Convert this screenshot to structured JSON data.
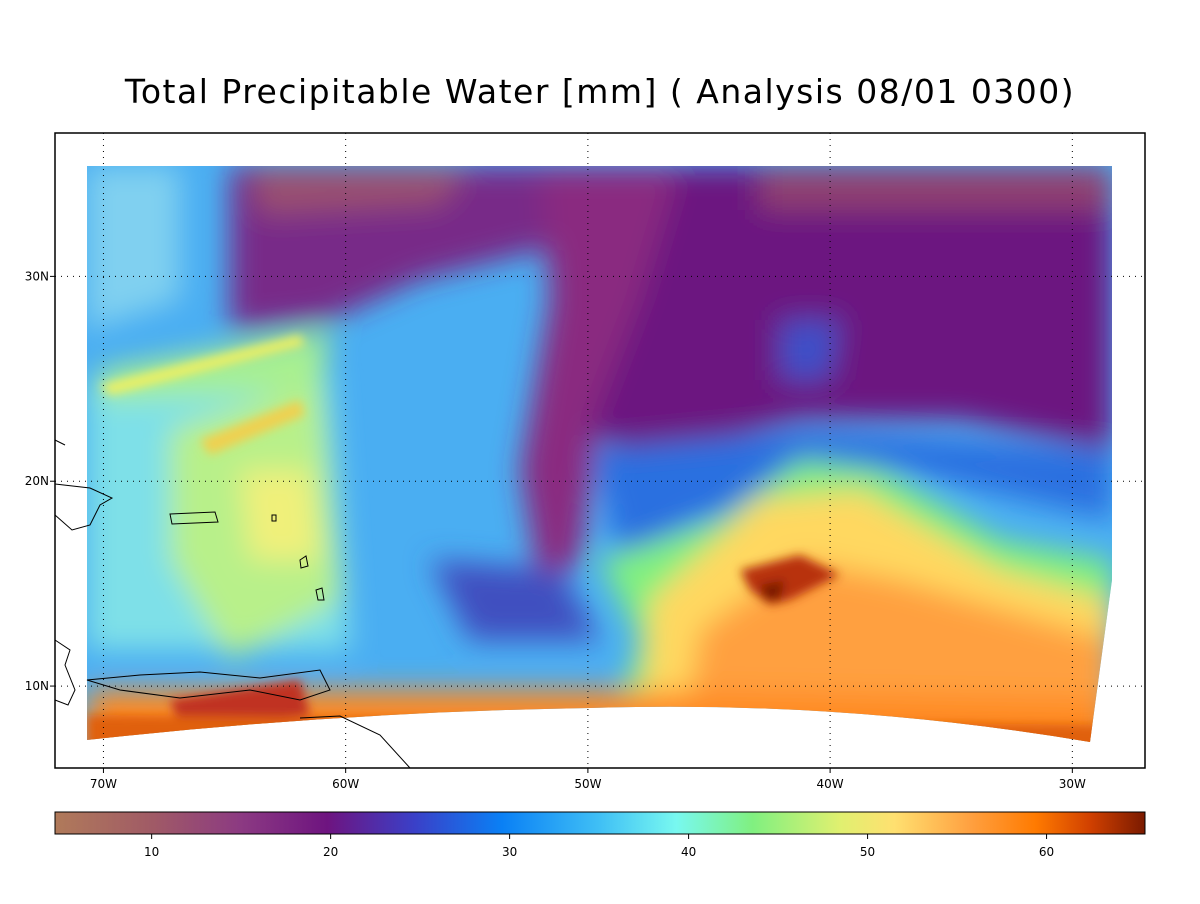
{
  "title": "Total Precipitable Water [mm]  (  Analysis  08/01 0300)",
  "map": {
    "xlim": [
      -72,
      -27
    ],
    "ylim": [
      6,
      37
    ],
    "xticks": [
      {
        "value": -70,
        "label": "70W"
      },
      {
        "value": -60,
        "label": "60W"
      },
      {
        "value": -50,
        "label": "50W"
      },
      {
        "value": -40,
        "label": "40W"
      },
      {
        "value": -30,
        "label": "30W"
      }
    ],
    "yticks": [
      {
        "value": 10,
        "label": "10N"
      },
      {
        "value": 20,
        "label": "20N"
      },
      {
        "value": 30,
        "label": "30N"
      }
    ],
    "grid": true
  },
  "colorbar": {
    "lim": [
      4.6,
      65.5
    ],
    "ticks": [
      10,
      20,
      30,
      40,
      50,
      60
    ]
  }
}
